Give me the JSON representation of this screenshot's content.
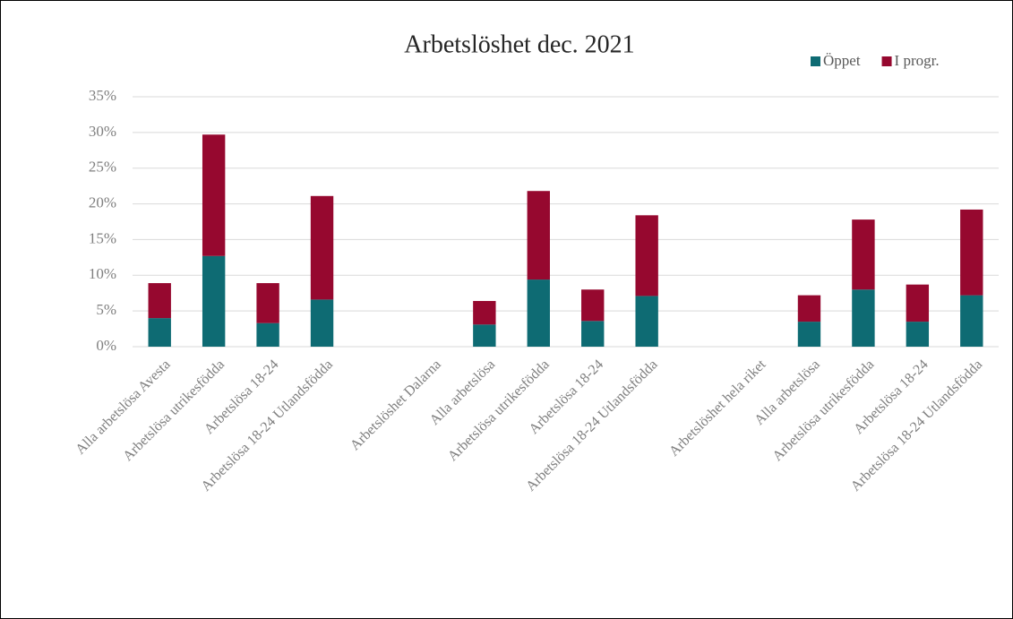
{
  "chart_data": {
    "type": "stacked_bar",
    "title": "Arbetslöshet dec. 2021",
    "categories": [
      "Alla arbetslösa Avesta",
      "Arbetslösa utrikesfödda",
      "Arbetslösa 18-24",
      "Arbetslösa 18-24 Utlandsfödda",
      null,
      "Arbetslöshet Dalarna",
      "Alla arbetslösa",
      "Arbetslösa utrikesfödda",
      "Arbetslösa 18-24",
      "Arbetslösa 18-24 Utlandsfödda",
      null,
      "Arbetslöshet hela riket",
      "Alla arbetslösa",
      "Arbetslösa utrikesfödda",
      "Arbetslösa 18-24",
      "Arbetslösa 18-24 Utlandsfödda"
    ],
    "series": [
      {
        "name": "Öppet",
        "color": "#0e6b73",
        "values": [
          4.0,
          12.7,
          3.3,
          6.6,
          null,
          null,
          3.1,
          9.4,
          3.6,
          7.1,
          null,
          null,
          3.5,
          8.0,
          3.5,
          7.2
        ]
      },
      {
        "name": "I progr.",
        "color": "#96082f",
        "values": [
          4.9,
          17.0,
          5.6,
          14.5,
          null,
          null,
          3.3,
          12.4,
          4.4,
          11.3,
          null,
          null,
          3.7,
          9.8,
          5.2,
          12.0
        ]
      }
    ],
    "ylim": [
      0,
      35
    ],
    "yticks": [
      {
        "value": 0,
        "label": "0%"
      },
      {
        "value": 5,
        "label": "5%"
      },
      {
        "value": 10,
        "label": "10%"
      },
      {
        "value": 15,
        "label": "15%"
      },
      {
        "value": 20,
        "label": "20%"
      },
      {
        "value": 25,
        "label": "25%"
      },
      {
        "value": 30,
        "label": "30%"
      },
      {
        "value": 35,
        "label": "35%"
      }
    ],
    "grid": true,
    "legend": "top-right"
  }
}
